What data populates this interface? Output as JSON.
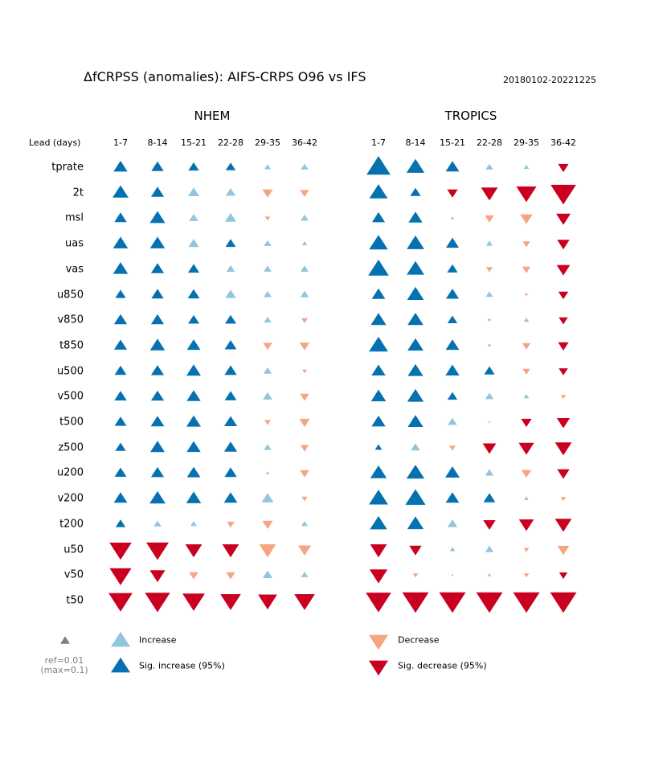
{
  "header": {
    "title": "ΔfCRPSS (anomalies): AIFS-CRPS O96 vs IFS",
    "date_range": "20180102-20221225"
  },
  "chart_data": {
    "type": "triangle-matrix",
    "lead_label": "Lead (days)",
    "columns": [
      "1-7",
      "8-14",
      "15-21",
      "22-28",
      "29-35",
      "36-42"
    ],
    "variables": [
      "tprate",
      "2t",
      "msl",
      "uas",
      "vas",
      "u850",
      "v850",
      "t850",
      "u500",
      "v500",
      "t500",
      "z500",
      "u200",
      "v200",
      "t200",
      "u50",
      "v50",
      "t50"
    ],
    "value_units": "ΔfCRPSS (triangle size ∝ |value|, ref=0.01, capped at max=0.1); positive = increase, negative = decrease; sig = significant at 95%",
    "panels": [
      {
        "name": "NHEM",
        "values": [
          [
            0.028,
            0.022,
            0.016,
            0.014,
            0.006,
            0.008
          ],
          [
            0.036,
            0.024,
            0.018,
            0.014,
            -0.016,
            -0.012
          ],
          [
            0.022,
            0.034,
            0.012,
            0.018,
            -0.004,
            0.009
          ],
          [
            0.032,
            0.032,
            0.016,
            0.015,
            0.008,
            0.004
          ],
          [
            0.032,
            0.024,
            0.018,
            0.01,
            0.009,
            0.009
          ],
          [
            0.016,
            0.022,
            0.02,
            0.016,
            0.009,
            0.01
          ],
          [
            0.024,
            0.024,
            0.018,
            0.018,
            0.008,
            -0.006
          ],
          [
            0.024,
            0.032,
            0.026,
            0.02,
            -0.012,
            -0.014
          ],
          [
            0.02,
            0.024,
            0.03,
            0.022,
            0.01,
            -0.003
          ],
          [
            0.022,
            0.024,
            0.028,
            0.02,
            0.013,
            -0.012
          ],
          [
            0.02,
            0.026,
            0.03,
            0.024,
            -0.006,
            -0.016
          ],
          [
            0.016,
            0.03,
            0.028,
            0.024,
            0.008,
            -0.01
          ],
          [
            0.02,
            0.024,
            0.026,
            0.022,
            0.002,
            -0.012
          ],
          [
            0.026,
            0.036,
            0.032,
            0.026,
            0.02,
            -0.005
          ],
          [
            0.014,
            0.008,
            0.006,
            -0.008,
            -0.016,
            0.006
          ],
          [
            -0.07,
            -0.072,
            -0.04,
            -0.04,
            -0.04,
            -0.024
          ],
          [
            -0.068,
            -0.034,
            -0.012,
            -0.012,
            0.014,
            0.007
          ],
          [
            -0.082,
            -0.09,
            -0.072,
            -0.06,
            -0.052,
            -0.06
          ]
        ],
        "significant": [
          [
            true,
            true,
            true,
            true,
            false,
            false
          ],
          [
            true,
            true,
            false,
            false,
            false,
            false
          ],
          [
            true,
            true,
            false,
            false,
            false,
            false
          ],
          [
            true,
            true,
            false,
            true,
            false,
            false
          ],
          [
            true,
            true,
            true,
            false,
            false,
            false
          ],
          [
            true,
            true,
            true,
            false,
            false,
            false
          ],
          [
            true,
            true,
            true,
            true,
            false,
            false
          ],
          [
            true,
            true,
            true,
            true,
            false,
            false
          ],
          [
            true,
            true,
            true,
            true,
            false,
            false
          ],
          [
            true,
            true,
            true,
            true,
            false,
            false
          ],
          [
            true,
            true,
            true,
            true,
            false,
            false
          ],
          [
            true,
            true,
            true,
            true,
            false,
            false
          ],
          [
            true,
            true,
            true,
            true,
            false,
            false
          ],
          [
            true,
            true,
            true,
            true,
            false,
            false
          ],
          [
            true,
            false,
            false,
            false,
            false,
            false
          ],
          [
            true,
            true,
            true,
            true,
            false,
            false
          ],
          [
            true,
            true,
            false,
            false,
            false,
            false
          ],
          [
            true,
            true,
            true,
            true,
            true,
            true
          ]
        ]
      },
      {
        "name": "TROPICS",
        "values": [
          [
            0.082,
            0.046,
            0.026,
            0.008,
            0.004,
            -0.016
          ],
          [
            0.048,
            0.016,
            -0.016,
            -0.04,
            -0.058,
            -0.092
          ],
          [
            0.024,
            0.028,
            0.002,
            -0.012,
            -0.022,
            -0.03
          ],
          [
            0.05,
            0.044,
            0.024,
            0.006,
            -0.008,
            -0.022
          ],
          [
            0.06,
            0.044,
            0.016,
            -0.006,
            -0.01,
            -0.026
          ],
          [
            0.026,
            0.04,
            0.024,
            0.007,
            -0.002,
            -0.014
          ],
          [
            0.034,
            0.036,
            0.014,
            -0.002,
            0.004,
            -0.012
          ],
          [
            0.052,
            0.036,
            0.026,
            -0.002,
            -0.01,
            -0.016
          ],
          [
            0.028,
            0.034,
            0.028,
            0.016,
            -0.008,
            -0.012
          ],
          [
            0.032,
            0.038,
            0.014,
            0.01,
            0.004,
            -0.004
          ],
          [
            0.028,
            0.034,
            0.012,
            -0.001,
            -0.016,
            -0.024
          ],
          [
            0.007,
            0.012,
            -0.006,
            -0.026,
            -0.034,
            -0.04
          ],
          [
            0.038,
            0.046,
            0.03,
            0.01,
            -0.014,
            -0.022
          ],
          [
            0.052,
            0.058,
            0.026,
            0.02,
            0.003,
            -0.004
          ],
          [
            0.042,
            0.038,
            0.014,
            -0.022,
            -0.032,
            -0.04
          ],
          [
            -0.04,
            -0.022,
            0.004,
            0.01,
            -0.004,
            -0.02
          ],
          [
            -0.046,
            -0.004,
            0.001,
            0.002,
            -0.004,
            -0.01
          ],
          [
            -0.092,
            -0.1,
            -0.1,
            -0.1,
            -0.1,
            -0.1
          ]
        ],
        "significant": [
          [
            true,
            true,
            true,
            false,
            false,
            true
          ],
          [
            true,
            true,
            true,
            true,
            true,
            true
          ],
          [
            true,
            true,
            false,
            false,
            false,
            true
          ],
          [
            true,
            true,
            true,
            false,
            false,
            true
          ],
          [
            true,
            true,
            true,
            false,
            false,
            true
          ],
          [
            true,
            true,
            true,
            false,
            false,
            true
          ],
          [
            true,
            true,
            true,
            false,
            false,
            true
          ],
          [
            true,
            true,
            true,
            false,
            false,
            true
          ],
          [
            true,
            true,
            true,
            true,
            false,
            true
          ],
          [
            true,
            true,
            true,
            false,
            false,
            false
          ],
          [
            true,
            true,
            false,
            false,
            true,
            true
          ],
          [
            true,
            false,
            false,
            true,
            true,
            true
          ],
          [
            true,
            true,
            true,
            false,
            false,
            true
          ],
          [
            true,
            true,
            true,
            true,
            false,
            false
          ],
          [
            true,
            true,
            false,
            true,
            true,
            true
          ],
          [
            true,
            true,
            false,
            false,
            false,
            false
          ],
          [
            true,
            false,
            false,
            false,
            false,
            true
          ],
          [
            true,
            true,
            true,
            true,
            true,
            true
          ]
        ]
      }
    ],
    "legend": {
      "ref_line1": "ref=0.01",
      "ref_line2": "(max=0.1)",
      "increase": "Increase",
      "sig_increase": "Sig. increase (95%)",
      "decrease": "Decrease",
      "sig_decrease": "Sig. decrease (95%)"
    },
    "colors": {
      "increase": "#92c5de",
      "sig_increase": "#0571b0",
      "decrease": "#f4a582",
      "sig_decrease": "#ca0020",
      "reference": "#7f7f7f"
    }
  }
}
